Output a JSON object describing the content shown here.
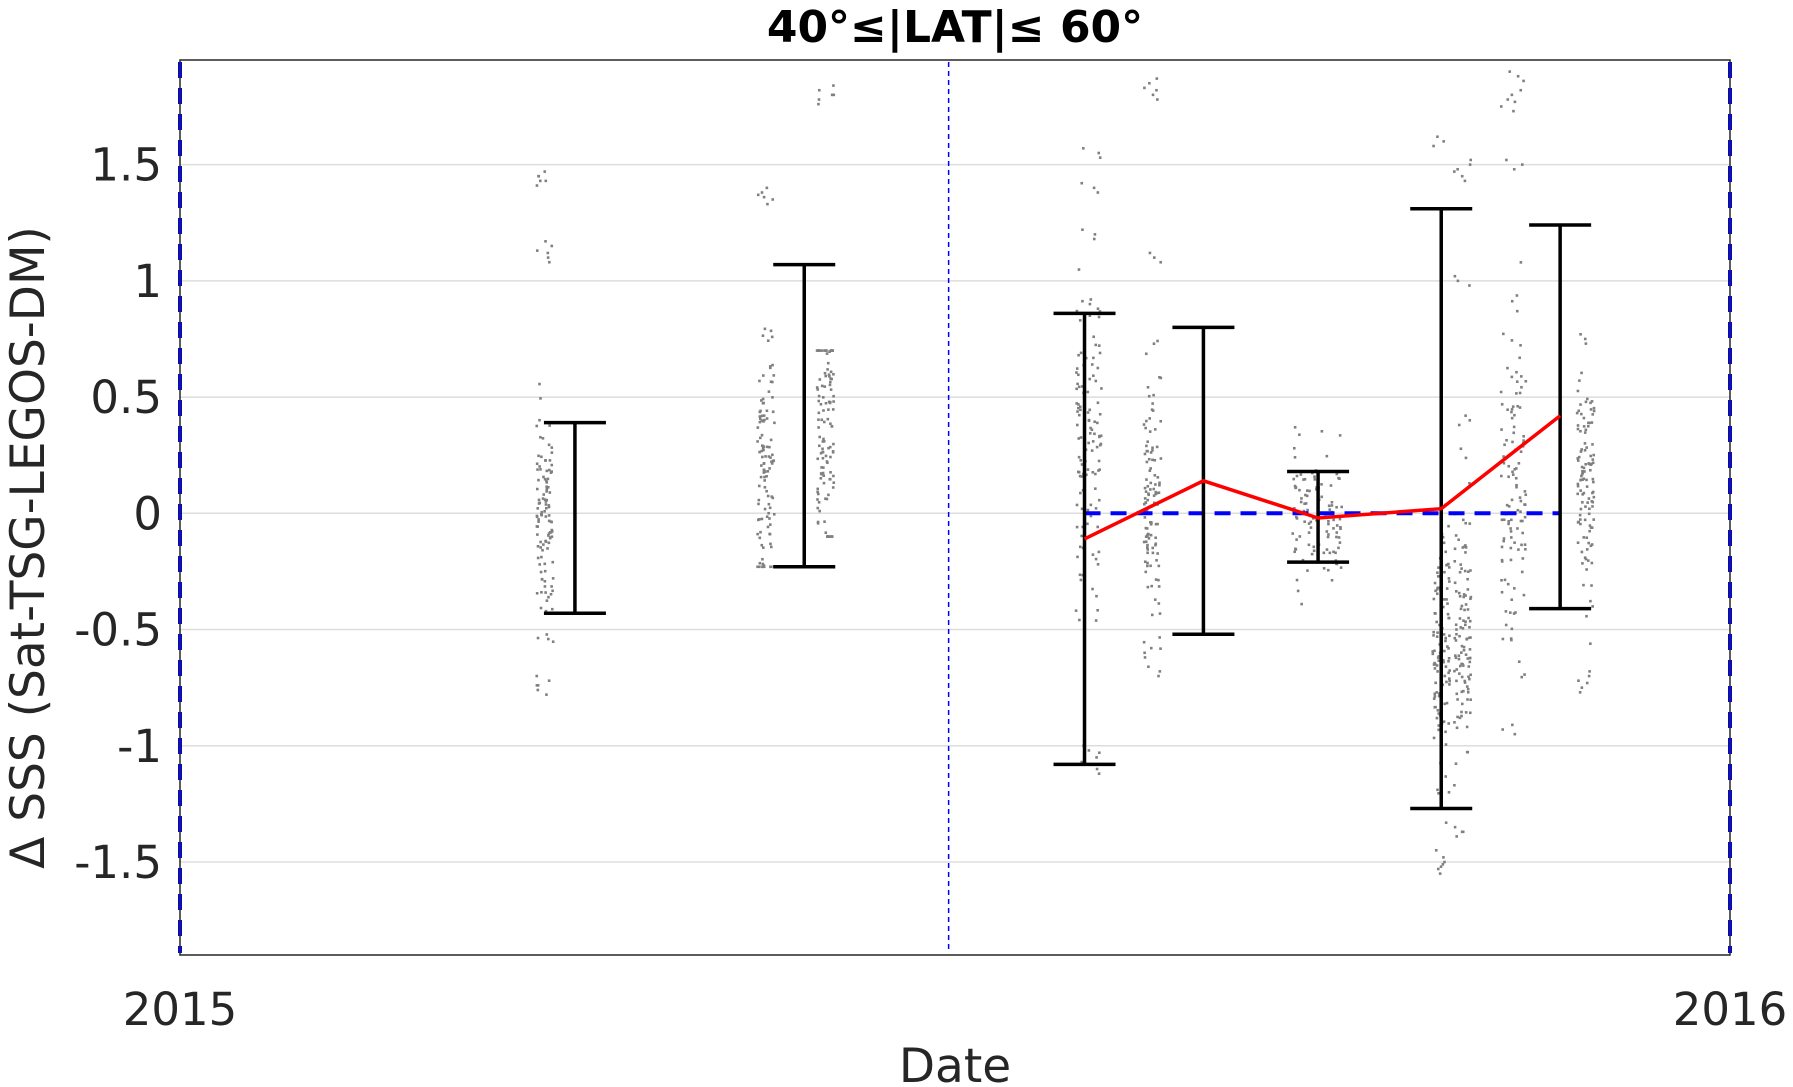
{
  "chart_data": {
    "type": "scatter",
    "title": "40°≤|LAT|≤ 60°",
    "xlabel": "Date",
    "ylabel": "Δ SSS (Sat-TSG-LEGOS-DM)",
    "x_tick_labels": [
      "2015",
      "2016"
    ],
    "xlim": [
      "2015-01-01",
      "2016-01-01"
    ],
    "ylim": [
      -1.9,
      1.95
    ],
    "y_ticks": [
      -1.5,
      -1,
      -0.5,
      0,
      0.5,
      1,
      1.5
    ],
    "y_tick_labels": [
      "-1.5",
      "-1",
      "-0.5",
      "0",
      "0.5",
      "1",
      "1.5"
    ],
    "grid": true,
    "colors": {
      "error_bars": "#000000",
      "scatter": "#808080",
      "mean_line": "#ff0000",
      "zero_line": "#0000ff",
      "frame_lines": "#0000ff",
      "grid": "#dddddd"
    },
    "error_bars": [
      {
        "x": "2015-04-04",
        "low": -0.43,
        "high": 0.39
      },
      {
        "x": "2015-05-28",
        "low": -0.23,
        "high": 1.07
      },
      {
        "x": "2015-08-02",
        "low": -1.08,
        "high": 0.86
      },
      {
        "x": "2015-08-30",
        "low": -0.52,
        "high": 0.8
      },
      {
        "x": "2015-09-26",
        "low": -0.21,
        "high": 0.18
      },
      {
        "x": "2015-10-25",
        "low": -1.27,
        "high": 1.31
      },
      {
        "x": "2015-11-22",
        "low": -0.41,
        "high": 1.24
      }
    ],
    "mean_line": {
      "x": [
        "2015-08-02",
        "2015-08-30",
        "2015-09-26",
        "2015-10-25",
        "2015-11-22"
      ],
      "y": [
        -0.11,
        0.14,
        -0.02,
        0.02,
        0.42
      ]
    },
    "zero_line": {
      "x": [
        "2015-08-02",
        "2015-11-22"
      ],
      "y": [
        0,
        0
      ]
    },
    "vertical_lines": [
      {
        "x": "2015-01-01",
        "style": "dashed"
      },
      {
        "x": "2015-07-01",
        "style": "dotted"
      },
      {
        "x": "2016-01-01",
        "style": "dashed"
      }
    ],
    "scatter_clusters": [
      {
        "x": "2015-03-28",
        "x_spread_days": 2,
        "y_center": -0.05,
        "y_spread": 0.25,
        "y_min": -0.76,
        "y_max": 1.45,
        "outliers": [
          1.1,
          1.15,
          1.43,
          1.45,
          -0.72,
          -0.76
        ]
      },
      {
        "x": "2015-05-19",
        "x_spread_days": 2,
        "y_center": 0.2,
        "y_spread": 0.3,
        "y_min": -0.23,
        "y_max": 1.38,
        "outliers": [
          1.35,
          1.38
        ]
      },
      {
        "x": "2015-06-02",
        "x_spread_days": 2,
        "y_center": 0.35,
        "y_spread": 0.3,
        "y_min": -0.1,
        "y_max": 0.7,
        "outliers": [
          1.78,
          1.82
        ]
      },
      {
        "x": "2015-08-03",
        "x_spread_days": 3,
        "y_center": 0.2,
        "y_spread": 0.35,
        "y_min": -1.1,
        "y_max": 1.58,
        "outliers": [
          -1.0,
          -1.05,
          -1.1,
          1.2,
          1.4,
          1.55,
          0.85,
          0.9
        ]
      },
      {
        "x": "2015-08-18",
        "x_spread_days": 2,
        "y_center": 0.05,
        "y_spread": 0.3,
        "y_min": -0.68,
        "y_max": 1.85,
        "outliers": [
          1.1,
          1.8,
          1.85,
          -0.6,
          -0.68
        ]
      },
      {
        "x": "2015-09-26",
        "x_spread_days": 6,
        "y_center": 0.0,
        "y_spread": 0.15,
        "y_min": -0.4,
        "y_max": 0.37,
        "outliers": []
      },
      {
        "x": "2015-10-25",
        "x_spread_days": 2,
        "y_center": -0.6,
        "y_spread": 0.3,
        "y_min": -1.53,
        "y_max": 1.61,
        "outliers": [
          -1.5,
          -1.53,
          1.6,
          -0.3
        ]
      },
      {
        "x": "2015-10-30",
        "x_spread_days": 2,
        "y_center": -0.5,
        "y_spread": 0.3,
        "y_min": -1.37,
        "y_max": 1.5,
        "outliers": [
          1.0,
          1.45,
          1.5,
          -1.37,
          0.4
        ]
      },
      {
        "x": "2015-11-11",
        "x_spread_days": 3,
        "y_center": 0.2,
        "y_spread": 0.35,
        "y_min": -0.93,
        "y_max": 1.88,
        "outliers": [
          1.75,
          1.8,
          1.88,
          1.5,
          -0.93
        ]
      },
      {
        "x": "2015-11-28",
        "x_spread_days": 2,
        "y_center": 0.1,
        "y_spread": 0.25,
        "y_min": -0.75,
        "y_max": 0.78,
        "outliers": [
          -0.7,
          -0.75,
          0.75
        ]
      }
    ]
  }
}
